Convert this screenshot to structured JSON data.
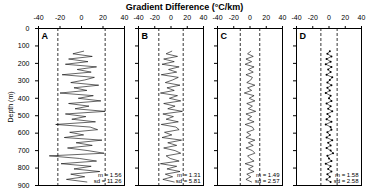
{
  "title": "Gradient Difference (°C/km)",
  "chart_data": [
    {
      "type": "line",
      "title": "A",
      "ylabel": "Depth (m)",
      "color": "#000000",
      "xlim": [
        -40,
        40
      ],
      "xticks": [
        -40,
        -20,
        0,
        20,
        40
      ],
      "ylim": [
        0,
        900
      ],
      "yticks": [
        0,
        100,
        200,
        300,
        400,
        500,
        600,
        700,
        800,
        900
      ],
      "reference_lines": [
        -22,
        22
      ],
      "line_style": "dashed",
      "annotations": [
        "m = 1.56",
        "sd = 11.26"
      ],
      "y": [
        130,
        145,
        160,
        175,
        190,
        205,
        220,
        235,
        250,
        265,
        280,
        295,
        310,
        325,
        340,
        355,
        370,
        385,
        400,
        415,
        430,
        445,
        460,
        475,
        490,
        505,
        520,
        535,
        550,
        565,
        580,
        595,
        610,
        625,
        640,
        655,
        670,
        685,
        700,
        715,
        730,
        745,
        760,
        775,
        790,
        805,
        820,
        835,
        850,
        865,
        880
      ],
      "x": [
        2,
        -8,
        10,
        -12,
        6,
        -15,
        14,
        -4,
        9,
        -18,
        12,
        3,
        -10,
        16,
        -7,
        5,
        -20,
        11,
        -3,
        18,
        -12,
        7,
        -6,
        22,
        -15,
        4,
        -9,
        13,
        -24,
        8,
        15,
        -11,
        2,
        -16,
        19,
        -5,
        10,
        -13,
        6,
        21,
        -30,
        -2,
        14,
        -19,
        9,
        -7,
        17,
        -10,
        3,
        -14,
        5
      ]
    },
    {
      "type": "line",
      "title": "B",
      "color": "#000000",
      "tick_labels": "x",
      "xlim": [
        -40,
        40
      ],
      "xticks": [
        -40,
        -20,
        0,
        20,
        40
      ],
      "ylim": [
        0,
        900
      ],
      "yticks": [
        0,
        100,
        200,
        300,
        400,
        500,
        600,
        700,
        800,
        900
      ],
      "reference_lines": [
        -15,
        15
      ],
      "line_style": "dashed",
      "annotations": [
        "m = 1.31",
        "sd = 5.81"
      ],
      "y": [
        130,
        145,
        160,
        175,
        190,
        205,
        220,
        235,
        250,
        265,
        280,
        295,
        310,
        325,
        340,
        355,
        370,
        385,
        400,
        415,
        430,
        445,
        460,
        475,
        490,
        505,
        520,
        535,
        550,
        565,
        580,
        595,
        610,
        625,
        640,
        655,
        670,
        685,
        700,
        715,
        730,
        745,
        760,
        775,
        790,
        805,
        820,
        835,
        850,
        865,
        880
      ],
      "x": [
        1,
        -6,
        8,
        -9,
        4,
        -11,
        10,
        -3,
        7,
        -12,
        9,
        2,
        -7,
        11,
        -5,
        4,
        -13,
        8,
        -2,
        12,
        -9,
        5,
        -4,
        14,
        -10,
        3,
        -6,
        9,
        -12,
        6,
        10,
        -8,
        1,
        -11,
        13,
        -4,
        7,
        -9,
        5,
        12,
        -6,
        -1,
        10,
        -13,
        7,
        -5,
        11,
        -7,
        2,
        -10,
        4
      ]
    },
    {
      "type": "line",
      "title": "C",
      "color": "#000000",
      "tick_labels": "x",
      "xlim": [
        -40,
        40
      ],
      "xticks": [
        -40,
        -20,
        0,
        20,
        40
      ],
      "ylim": [
        0,
        900
      ],
      "yticks": [
        0,
        100,
        200,
        300,
        400,
        500,
        600,
        700,
        800,
        900
      ],
      "reference_lines": [
        -12,
        12
      ],
      "line_style": "dashed",
      "annotations": [
        "m = 1.49",
        "sd = 2.57"
      ],
      "y": [
        130,
        145,
        160,
        175,
        190,
        205,
        220,
        235,
        250,
        265,
        280,
        295,
        310,
        325,
        340,
        355,
        370,
        385,
        400,
        415,
        430,
        445,
        460,
        475,
        490,
        505,
        520,
        535,
        550,
        565,
        580,
        595,
        610,
        625,
        640,
        655,
        670,
        685,
        700,
        715,
        730,
        745,
        760,
        775,
        790,
        805,
        820,
        835,
        850,
        865,
        880
      ],
      "x": [
        1,
        -3,
        4,
        -5,
        2,
        -6,
        5,
        -2,
        4,
        -5,
        3,
        1,
        -4,
        6,
        -3,
        2,
        -7,
        5,
        -1,
        6,
        -4,
        3,
        -2,
        7,
        -5,
        2,
        -3,
        5,
        -6,
        3,
        5,
        -4,
        1,
        -5,
        6,
        -2,
        4,
        -5,
        3,
        6,
        -3,
        0,
        5,
        -6,
        4,
        -2,
        5,
        -4,
        1,
        -5,
        2
      ]
    },
    {
      "type": "line",
      "title": "D",
      "color": "#000000",
      "tick_labels": "x",
      "marker": "circle",
      "xlim": [
        -40,
        40
      ],
      "xticks": [
        -40,
        -20,
        0,
        20,
        40
      ],
      "ylim": [
        0,
        900
      ],
      "yticks": [
        0,
        100,
        200,
        300,
        400,
        500,
        600,
        700,
        800,
        900
      ],
      "reference_lines": [
        -10,
        10
      ],
      "line_style": "dashed",
      "annotations": [
        "m = 1.58",
        "sd = 2.58"
      ],
      "y": [
        130,
        145,
        160,
        175,
        190,
        205,
        220,
        235,
        250,
        265,
        280,
        295,
        310,
        325,
        340,
        355,
        370,
        385,
        400,
        415,
        430,
        445,
        460,
        475,
        490,
        505,
        520,
        535,
        550,
        565,
        580,
        595,
        610,
        625,
        640,
        655,
        670,
        685,
        700,
        715,
        730,
        745,
        760,
        775,
        790,
        805,
        820,
        835,
        850,
        865,
        880
      ],
      "x": [
        1,
        -2,
        3,
        -3,
        2,
        -4,
        3,
        -1,
        2,
        -3,
        4,
        1,
        -2,
        3,
        -2,
        1,
        -4,
        2,
        0,
        3,
        -3,
        2,
        -1,
        4,
        -2,
        1,
        -3,
        3,
        -4,
        2,
        3,
        -2,
        1,
        -3,
        4,
        -1,
        2,
        -3,
        2,
        5,
        -2,
        0,
        3,
        -4,
        2,
        -1,
        3,
        -2,
        1,
        -3,
        2
      ]
    }
  ]
}
